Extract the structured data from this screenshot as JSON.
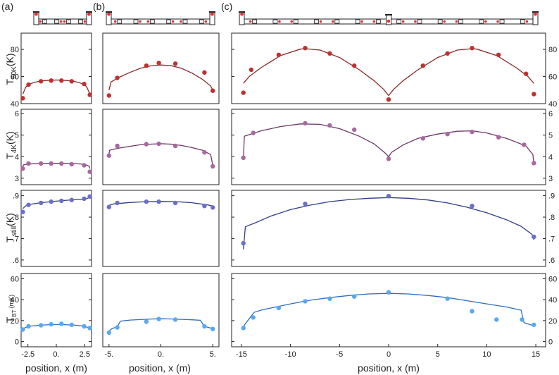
{
  "figure": {
    "type": "multi-panel temperature profiles",
    "panel_labels": [
      "(a)",
      "(b)",
      "(c)"
    ],
    "xlabel": "position, x (m)",
    "row_ylabels": [
      {
        "main": "T",
        "sub": "50K",
        "unit": "(K)"
      },
      {
        "main": "T",
        "sub": "4K",
        "unit": "(K)"
      },
      {
        "main": "T",
        "sub": "still",
        "unit": "(K)"
      },
      {
        "main": "T",
        "sub": "BT",
        "unit": "(mK)"
      }
    ],
    "colors": {
      "T50K": "#c0302e",
      "T50K_line": "#8a2a2a",
      "T4K": "#a8679f",
      "T4K_line": "#6e3766",
      "Tstill": "#6a6fc8",
      "Tstill_line": "#303c86",
      "TBT": "#5aa8f0",
      "TBT_line": "#2e6cc0",
      "schematic_dot": "#e03030"
    }
  },
  "chart_data": [
    {
      "type": "scatter",
      "panel": "a",
      "quantity": "T50K",
      "ylim": [
        40,
        92
      ],
      "xlim": [
        -3.1,
        3.1
      ],
      "xticks": [],
      "xtick_labels": [],
      "yticks": [
        40,
        60,
        80
      ],
      "ytick_labels": [
        "40",
        "60",
        "80"
      ],
      "points": {
        "x": [
          -2.95,
          -2.45,
          -1.35,
          -0.45,
          0.45,
          1.35,
          2.45,
          2.95
        ],
        "y": [
          44,
          54,
          56.5,
          57,
          57,
          56.5,
          54.5,
          46.5
        ]
      },
      "model": {
        "x": [
          -2.95,
          -2.7,
          -2.5,
          -2.0,
          -1.5,
          -1.0,
          -0.5,
          0,
          0.5,
          1.0,
          1.5,
          2.0,
          2.5,
          2.7,
          2.95
        ],
        "y": [
          47,
          52,
          54,
          55.5,
          56.5,
          57,
          57.3,
          57.4,
          57.3,
          57,
          56.5,
          55.5,
          54,
          52,
          47
        ]
      }
    },
    {
      "type": "scatter",
      "panel": "b",
      "quantity": "T50K",
      "ylim": [
        40,
        92
      ],
      "xlim": [
        -5.6,
        5.6
      ],
      "xticks": [],
      "xtick_labels": [],
      "yticks": [],
      "ytick_labels": [],
      "points": {
        "x": [
          -5.0,
          -4.2,
          -1.4,
          -0.2,
          1.4,
          4.2,
          5.0
        ],
        "y": [
          46,
          59,
          68,
          70,
          69.5,
          63,
          49.5
        ]
      },
      "model": {
        "x": [
          -5.0,
          -4.8,
          -4.0,
          -3.0,
          -2.0,
          -1.0,
          0,
          1.0,
          2.0,
          3.0,
          4.0,
          4.8,
          5.0
        ],
        "y": [
          50,
          56,
          59.5,
          63,
          66,
          67.8,
          68.5,
          68,
          66,
          62.5,
          58,
          53,
          50
        ]
      }
    },
    {
      "type": "scatter",
      "panel": "c",
      "quantity": "T50K",
      "ylim": [
        40,
        92
      ],
      "xlim": [
        -16,
        16
      ],
      "xticks": [],
      "xtick_labels": [],
      "yticks": [
        40,
        60,
        80
      ],
      "ytick_labels": [
        "40",
        "60",
        "80"
      ],
      "points": {
        "x": [
          -14.8,
          -14.0,
          -11.2,
          -8.5,
          -6.0,
          -3.5,
          0,
          3.5,
          6.0,
          8.5,
          11.2,
          14.0,
          14.8
        ],
        "y": [
          48,
          65,
          76,
          81,
          77,
          68,
          43,
          68,
          77,
          81,
          76,
          62,
          47
        ]
      },
      "model": {
        "x": [
          -14.8,
          -14.2,
          -13,
          -11,
          -9,
          -8.5,
          -7,
          -5,
          -3,
          -1.5,
          -0.5,
          0,
          0.5,
          1.5,
          3,
          5,
          7,
          8.5,
          9,
          11,
          13,
          14.2,
          14.8
        ],
        "y": [
          55,
          60,
          66.5,
          75.5,
          80.2,
          80.5,
          79.5,
          74,
          65,
          57,
          50.5,
          46,
          50.5,
          57,
          65,
          74,
          79.5,
          80.5,
          80.2,
          75.5,
          66.5,
          60,
          55
        ]
      }
    },
    {
      "type": "scatter",
      "panel": "a",
      "quantity": "T4K",
      "ylim": [
        2.7,
        6.2
      ],
      "xlim": [
        -3.1,
        3.1
      ],
      "xticks": [],
      "xtick_labels": [],
      "yticks": [
        3,
        4,
        5,
        6
      ],
      "ytick_labels": [
        "3",
        "4",
        "5",
        "6"
      ],
      "points": {
        "x": [
          -2.95,
          -2.45,
          -1.35,
          -0.45,
          0.45,
          1.35,
          2.45,
          2.95
        ],
        "y": [
          3.45,
          3.68,
          3.68,
          3.68,
          3.68,
          3.65,
          3.6,
          3.3
        ]
      },
      "model": {
        "x": [
          -2.95,
          -2.9,
          -2.5,
          -1.5,
          -0.5,
          0.5,
          1.5,
          2.5,
          2.9,
          2.95
        ],
        "y": [
          3.5,
          3.62,
          3.66,
          3.68,
          3.69,
          3.69,
          3.68,
          3.65,
          3.55,
          3.45
        ]
      }
    },
    {
      "type": "scatter",
      "panel": "b",
      "quantity": "T4K",
      "ylim": [
        2.7,
        6.2
      ],
      "xlim": [
        -5.6,
        5.6
      ],
      "xticks": [],
      "xtick_labels": [],
      "yticks": [],
      "ytick_labels": [],
      "points": {
        "x": [
          -5.0,
          -4.2,
          -1.4,
          -0.2,
          1.4,
          4.2,
          5.0
        ],
        "y": [
          4.05,
          4.5,
          4.58,
          4.6,
          4.5,
          4.2,
          3.55
        ]
      },
      "model": {
        "x": [
          -5.0,
          -4.95,
          -4.0,
          -3.0,
          -2.0,
          -1.0,
          0,
          1.0,
          2.0,
          3.0,
          4.0,
          4.8,
          5.0
        ],
        "y": [
          4.1,
          4.3,
          4.4,
          4.48,
          4.55,
          4.58,
          4.6,
          4.58,
          4.52,
          4.42,
          4.3,
          4.1,
          3.6
        ]
      }
    },
    {
      "type": "scatter",
      "panel": "c",
      "quantity": "T4K",
      "ylim": [
        2.7,
        6.2
      ],
      "xlim": [
        -16,
        16
      ],
      "xticks": [],
      "xtick_labels": [],
      "yticks": [
        3,
        4,
        5,
        6
      ],
      "ytick_labels": [
        "3",
        "4",
        "5",
        "6"
      ],
      "points": {
        "x": [
          -14.8,
          -13.8,
          -8.5,
          -6.0,
          -3.5,
          0,
          3.5,
          6.0,
          8.5,
          11.2,
          13.8,
          14.8
        ],
        "y": [
          3.95,
          5.1,
          5.55,
          5.45,
          5.25,
          3.9,
          4.85,
          5.05,
          5.15,
          4.9,
          4.55,
          3.7
        ]
      },
      "model": {
        "x": [
          -14.8,
          -14.7,
          -13,
          -11,
          -9,
          -7,
          -5,
          -3,
          -1.5,
          -0.3,
          0,
          0.3,
          1.5,
          3,
          5,
          7,
          8.5,
          10,
          12,
          14,
          14.7,
          14.8
        ],
        "y": [
          3.9,
          4.95,
          5.2,
          5.4,
          5.52,
          5.5,
          5.3,
          4.95,
          4.6,
          4.15,
          4.0,
          4.2,
          4.55,
          4.85,
          5.05,
          5.18,
          5.2,
          5.1,
          4.85,
          4.5,
          4.1,
          3.7
        ]
      }
    },
    {
      "type": "scatter",
      "panel": "a",
      "quantity": "Tstill",
      "ylim": [
        0.57,
        0.925
      ],
      "xlim": [
        -3.1,
        3.1
      ],
      "xticks": [],
      "xtick_labels": [],
      "yticks": [
        0.6,
        0.7,
        0.8,
        0.9
      ],
      "ytick_labels": [
        ".6",
        ".7",
        ".8",
        ".9"
      ],
      "points": {
        "x": [
          -2.95,
          -2.45,
          -1.35,
          -0.45,
          0.45,
          1.35,
          2.45,
          2.95
        ],
        "y": [
          0.824,
          0.857,
          0.866,
          0.872,
          0.876,
          0.88,
          0.886,
          0.896
        ]
      },
      "model": {
        "x": [
          -2.95,
          -2.7,
          -2.5,
          -1.5,
          -0.5,
          0.5,
          1.5,
          2.5,
          2.7,
          2.95
        ],
        "y": [
          0.84,
          0.852,
          0.858,
          0.866,
          0.872,
          0.877,
          0.881,
          0.884,
          0.887,
          0.892
        ]
      }
    },
    {
      "type": "scatter",
      "panel": "b",
      "quantity": "Tstill",
      "ylim": [
        0.57,
        0.925
      ],
      "xlim": [
        -5.6,
        5.6
      ],
      "xticks": [],
      "xtick_labels": [],
      "yticks": [],
      "ytick_labels": [],
      "points": {
        "x": [
          -5.0,
          -4.2,
          -1.4,
          -0.2,
          1.4,
          4.2,
          5.0
        ],
        "y": [
          0.847,
          0.866,
          0.872,
          0.872,
          0.866,
          0.852,
          0.845
        ]
      },
      "model": {
        "x": [
          -5.0,
          -4.5,
          -3.0,
          -1.5,
          0,
          1.5,
          3.0,
          4.5,
          5.0
        ],
        "y": [
          0.855,
          0.862,
          0.868,
          0.872,
          0.873,
          0.872,
          0.867,
          0.857,
          0.852
        ]
      }
    },
    {
      "type": "scatter",
      "panel": "c",
      "quantity": "Tstill",
      "ylim": [
        0.57,
        0.925
      ],
      "xlim": [
        -16,
        16
      ],
      "xticks": [],
      "xtick_labels": [],
      "yticks": [
        0.6,
        0.7,
        0.8,
        0.9
      ],
      "ytick_labels": [
        ".6",
        ".7",
        ".8",
        ".9"
      ],
      "points": {
        "x": [
          -14.8,
          -8.5,
          0,
          8.5,
          14.8
        ],
        "y": [
          0.678,
          0.862,
          0.898,
          0.852,
          0.708
        ]
      },
      "model": {
        "x": [
          -14.8,
          -14.6,
          -13.5,
          -12,
          -10,
          -8,
          -6,
          -4,
          -2,
          0,
          2,
          4,
          6,
          8,
          10,
          12,
          13.5,
          14.6,
          14.8
        ],
        "y": [
          0.65,
          0.755,
          0.775,
          0.805,
          0.835,
          0.856,
          0.872,
          0.882,
          0.888,
          0.891,
          0.888,
          0.88,
          0.866,
          0.846,
          0.82,
          0.788,
          0.757,
          0.72,
          0.695
        ]
      }
    },
    {
      "type": "scatter",
      "panel": "a",
      "quantity": "TBT",
      "ylim": [
        -5,
        65
      ],
      "xlim": [
        -3.1,
        3.1
      ],
      "xticks": [
        -2.5,
        0,
        2.5
      ],
      "xtick_labels": [
        "-2.5",
        "0.",
        "2.5"
      ],
      "yticks": [
        0,
        20,
        40,
        60
      ],
      "ytick_labels": [
        "0",
        "20",
        "40",
        "60"
      ],
      "points": {
        "x": [
          -2.95,
          -2.45,
          -1.35,
          -0.45,
          0.45,
          1.35,
          2.45,
          2.95
        ],
        "y": [
          11.5,
          14.5,
          15.5,
          16.5,
          17,
          16,
          14.5,
          13
        ]
      },
      "model": {
        "x": [
          -2.95,
          -2.7,
          -2.5,
          -1.5,
          -0.5,
          0.5,
          1.5,
          2.5,
          2.7,
          2.95
        ],
        "y": [
          12,
          13.5,
          14.5,
          15.5,
          16.2,
          16.2,
          15.8,
          14.8,
          13.8,
          12.5
        ]
      }
    },
    {
      "type": "scatter",
      "panel": "b",
      "quantity": "TBT",
      "ylim": [
        -5,
        65
      ],
      "xlim": [
        -5.6,
        5.6
      ],
      "xticks": [
        -5,
        0,
        5
      ],
      "xtick_labels": [
        "-5.",
        "0.",
        "5."
      ],
      "yticks": [],
      "ytick_labels": [],
      "points": {
        "x": [
          -5.0,
          -4.2,
          -1.4,
          -0.2,
          1.4,
          4.2,
          5.0
        ],
        "y": [
          8.5,
          13.5,
          19,
          21.5,
          21,
          14.5,
          12
        ]
      },
      "model": {
        "x": [
          -5.0,
          -4.7,
          -4.2,
          -3.9,
          -3.0,
          -2.0,
          -1.0,
          0,
          1.0,
          2.0,
          3.0,
          3.8,
          4.2,
          4.7,
          5.0
        ],
        "y": [
          10,
          12.5,
          14,
          19.5,
          20.5,
          21,
          21.5,
          21.8,
          21.6,
          21.2,
          20.8,
          20.3,
          14.5,
          13.2,
          12.5
        ]
      }
    },
    {
      "type": "scatter",
      "panel": "c",
      "quantity": "TBT",
      "ylim": [
        -5,
        65
      ],
      "xlim": [
        -16,
        16
      ],
      "xticks": [
        -15,
        -10,
        -5,
        0,
        5,
        10,
        15
      ],
      "xtick_labels": [
        "-15",
        "-10",
        "-5",
        "0",
        "5",
        "10",
        "15"
      ],
      "yticks": [
        0,
        20,
        40,
        60
      ],
      "ytick_labels": [
        "0",
        "20",
        "40",
        "60"
      ],
      "points": {
        "x": [
          -14.8,
          -13.8,
          -11.2,
          -8.5,
          -6.0,
          -3.5,
          0,
          6.0,
          8.5,
          11.0,
          13.6,
          14.8
        ],
        "y": [
          13,
          23,
          32,
          38.5,
          41,
          43,
          47,
          41,
          29,
          21,
          21,
          16
        ]
      },
      "model": {
        "x": [
          -14.8,
          -14.6,
          -13.7,
          -13.0,
          -11.5,
          -10,
          -8,
          -6,
          -4,
          -2,
          0,
          2,
          4,
          6,
          8,
          10,
          12,
          13.5,
          13.8,
          14.8
        ],
        "y": [
          14,
          17,
          28,
          30,
          33,
          36,
          39.5,
          42,
          44,
          45.5,
          46,
          45.5,
          44,
          42,
          39,
          36,
          33,
          30,
          18,
          15
        ]
      }
    }
  ]
}
